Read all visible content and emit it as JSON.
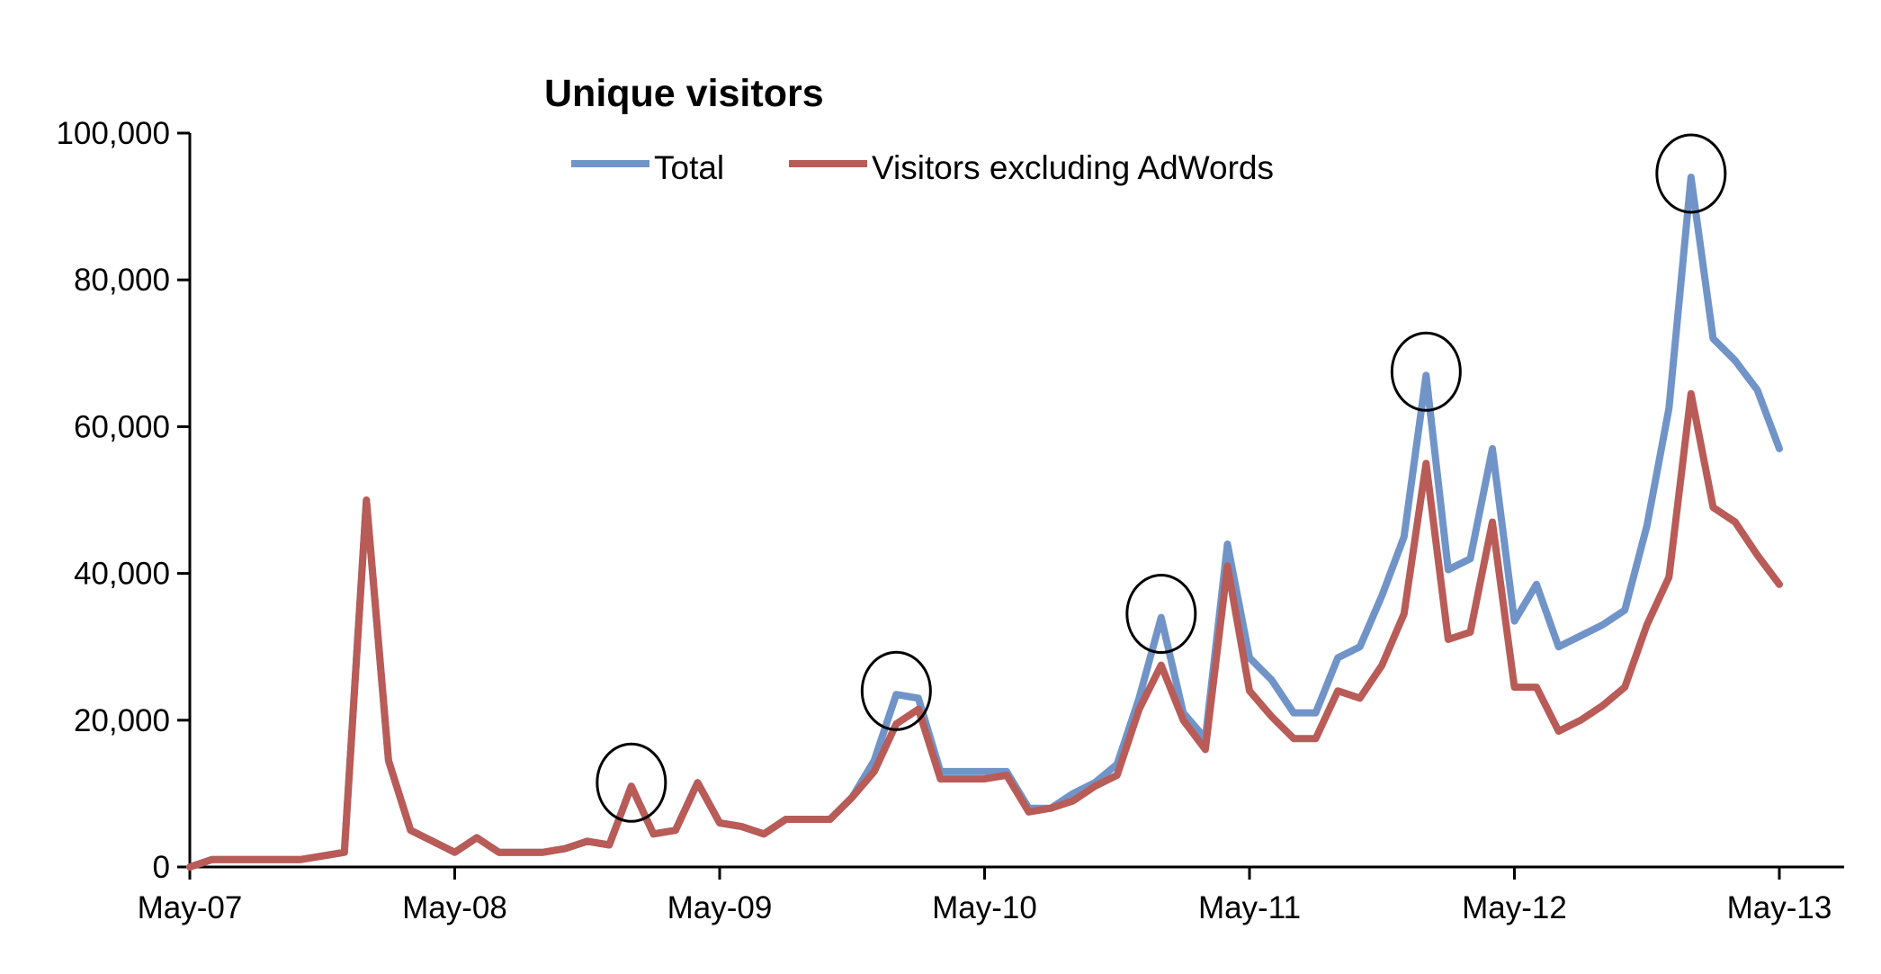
{
  "chart_data": {
    "type": "line",
    "title": "Unique visitors",
    "xlabel": "",
    "ylabel": "",
    "x_tick_labels": [
      "May-07",
      "May-08",
      "May-09",
      "May-10",
      "May-11",
      "May-12",
      "May-13"
    ],
    "y_tick_labels": [
      "0",
      "20,000",
      "40,000",
      "60,000",
      "80,000",
      "100,000"
    ],
    "y_ticks": [
      0,
      20000,
      40000,
      60000,
      80000,
      100000
    ],
    "ylim": [
      0,
      100000
    ],
    "x_range": [
      "2007-05",
      "2013-05"
    ],
    "grid": false,
    "legend_position": "top",
    "series": [
      {
        "name": "Total",
        "color": "#7094C8",
        "points": [
          [
            "2007-05",
            0
          ],
          [
            "2007-06",
            1000
          ],
          [
            "2007-07",
            1000
          ],
          [
            "2007-08",
            1000
          ],
          [
            "2007-09",
            1000
          ],
          [
            "2007-10",
            1000
          ],
          [
            "2007-11",
            1500
          ],
          [
            "2007-12",
            2000
          ],
          [
            "2008-01",
            50000
          ],
          [
            "2008-02",
            14500
          ],
          [
            "2008-03",
            5000
          ],
          [
            "2008-04",
            3500
          ],
          [
            "2008-05",
            2000
          ],
          [
            "2008-06",
            4000
          ],
          [
            "2008-07",
            2000
          ],
          [
            "2008-08",
            2000
          ],
          [
            "2008-09",
            2000
          ],
          [
            "2008-10",
            2500
          ],
          [
            "2008-11",
            3500
          ],
          [
            "2008-12",
            3000
          ],
          [
            "2009-01",
            11000
          ],
          [
            "2009-02",
            4500
          ],
          [
            "2009-03",
            5000
          ],
          [
            "2009-04",
            11500
          ],
          [
            "2009-05",
            6000
          ],
          [
            "2009-06",
            5500
          ],
          [
            "2009-07",
            4500
          ],
          [
            "2009-08",
            6500
          ],
          [
            "2009-09",
            6500
          ],
          [
            "2009-10",
            6500
          ],
          [
            "2009-11",
            9500
          ],
          [
            "2009-12",
            14500
          ],
          [
            "2010-01",
            23500
          ],
          [
            "2010-02",
            23000
          ],
          [
            "2010-03",
            13000
          ],
          [
            "2010-04",
            13000
          ],
          [
            "2010-05",
            13000
          ],
          [
            "2010-06",
            13000
          ],
          [
            "2010-07",
            8000
          ],
          [
            "2010-08",
            8000
          ],
          [
            "2010-09",
            10000
          ],
          [
            "2010-10",
            11500
          ],
          [
            "2010-11",
            14000
          ],
          [
            "2010-12",
            23000
          ],
          [
            "2011-01",
            34000
          ],
          [
            "2011-02",
            21000
          ],
          [
            "2011-03",
            17500
          ],
          [
            "2011-04",
            44000
          ],
          [
            "2011-05",
            28500
          ],
          [
            "2011-06",
            25500
          ],
          [
            "2011-07",
            21000
          ],
          [
            "2011-08",
            21000
          ],
          [
            "2011-09",
            28500
          ],
          [
            "2011-10",
            30000
          ],
          [
            "2011-11",
            37000
          ],
          [
            "2011-12",
            45000
          ],
          [
            "2012-01",
            67000
          ],
          [
            "2012-02",
            40500
          ],
          [
            "2012-03",
            42000
          ],
          [
            "2012-04",
            57000
          ],
          [
            "2012-05",
            33500
          ],
          [
            "2012-06",
            38500
          ],
          [
            "2012-07",
            30000
          ],
          [
            "2012-08",
            31500
          ],
          [
            "2012-09",
            33000
          ],
          [
            "2012-10",
            35000
          ],
          [
            "2012-11",
            46500
          ],
          [
            "2012-12",
            62500
          ],
          [
            "2013-01",
            94000
          ],
          [
            "2013-02",
            72000
          ],
          [
            "2013-03",
            69000
          ],
          [
            "2013-04",
            65000
          ],
          [
            "2013-05",
            57000
          ]
        ]
      },
      {
        "name": "Visitors excluding AdWords",
        "color": "#B95B57",
        "points": [
          [
            "2007-05",
            0
          ],
          [
            "2007-06",
            1000
          ],
          [
            "2007-07",
            1000
          ],
          [
            "2007-08",
            1000
          ],
          [
            "2007-09",
            1000
          ],
          [
            "2007-10",
            1000
          ],
          [
            "2007-11",
            1500
          ],
          [
            "2007-12",
            2000
          ],
          [
            "2008-01",
            50000
          ],
          [
            "2008-02",
            14500
          ],
          [
            "2008-03",
            5000
          ],
          [
            "2008-04",
            3500
          ],
          [
            "2008-05",
            2000
          ],
          [
            "2008-06",
            4000
          ],
          [
            "2008-07",
            2000
          ],
          [
            "2008-08",
            2000
          ],
          [
            "2008-09",
            2000
          ],
          [
            "2008-10",
            2500
          ],
          [
            "2008-11",
            3500
          ],
          [
            "2008-12",
            3000
          ],
          [
            "2009-01",
            11000
          ],
          [
            "2009-02",
            4500
          ],
          [
            "2009-03",
            5000
          ],
          [
            "2009-04",
            11500
          ],
          [
            "2009-05",
            6000
          ],
          [
            "2009-06",
            5500
          ],
          [
            "2009-07",
            4500
          ],
          [
            "2009-08",
            6500
          ],
          [
            "2009-09",
            6500
          ],
          [
            "2009-10",
            6500
          ],
          [
            "2009-11",
            9500
          ],
          [
            "2009-12",
            13000
          ],
          [
            "2010-01",
            19500
          ],
          [
            "2010-02",
            21500
          ],
          [
            "2010-03",
            12000
          ],
          [
            "2010-04",
            12000
          ],
          [
            "2010-05",
            12000
          ],
          [
            "2010-06",
            12500
          ],
          [
            "2010-07",
            7500
          ],
          [
            "2010-08",
            8000
          ],
          [
            "2010-09",
            9000
          ],
          [
            "2010-10",
            11000
          ],
          [
            "2010-11",
            12500
          ],
          [
            "2010-12",
            21500
          ],
          [
            "2011-01",
            27500
          ],
          [
            "2011-02",
            20000
          ],
          [
            "2011-03",
            16000
          ],
          [
            "2011-04",
            41000
          ],
          [
            "2011-05",
            24000
          ],
          [
            "2011-06",
            20500
          ],
          [
            "2011-07",
            17500
          ],
          [
            "2011-08",
            17500
          ],
          [
            "2011-09",
            24000
          ],
          [
            "2011-10",
            23000
          ],
          [
            "2011-11",
            27500
          ],
          [
            "2011-12",
            34500
          ],
          [
            "2012-01",
            55000
          ],
          [
            "2012-02",
            31000
          ],
          [
            "2012-03",
            32000
          ],
          [
            "2012-04",
            47000
          ],
          [
            "2012-05",
            24500
          ],
          [
            "2012-06",
            24500
          ],
          [
            "2012-07",
            18500
          ],
          [
            "2012-08",
            20000
          ],
          [
            "2012-09",
            22000
          ],
          [
            "2012-10",
            24500
          ],
          [
            "2012-11",
            33000
          ],
          [
            "2012-12",
            39500
          ],
          [
            "2013-01",
            64500
          ],
          [
            "2013-02",
            49000
          ],
          [
            "2013-03",
            47000
          ],
          [
            "2013-04",
            42500
          ],
          [
            "2013-05",
            38500
          ]
        ]
      }
    ],
    "annotations": {
      "circled_points": [
        "2009-01",
        "2010-01",
        "2011-01",
        "2012-01",
        "2013-01"
      ]
    }
  }
}
